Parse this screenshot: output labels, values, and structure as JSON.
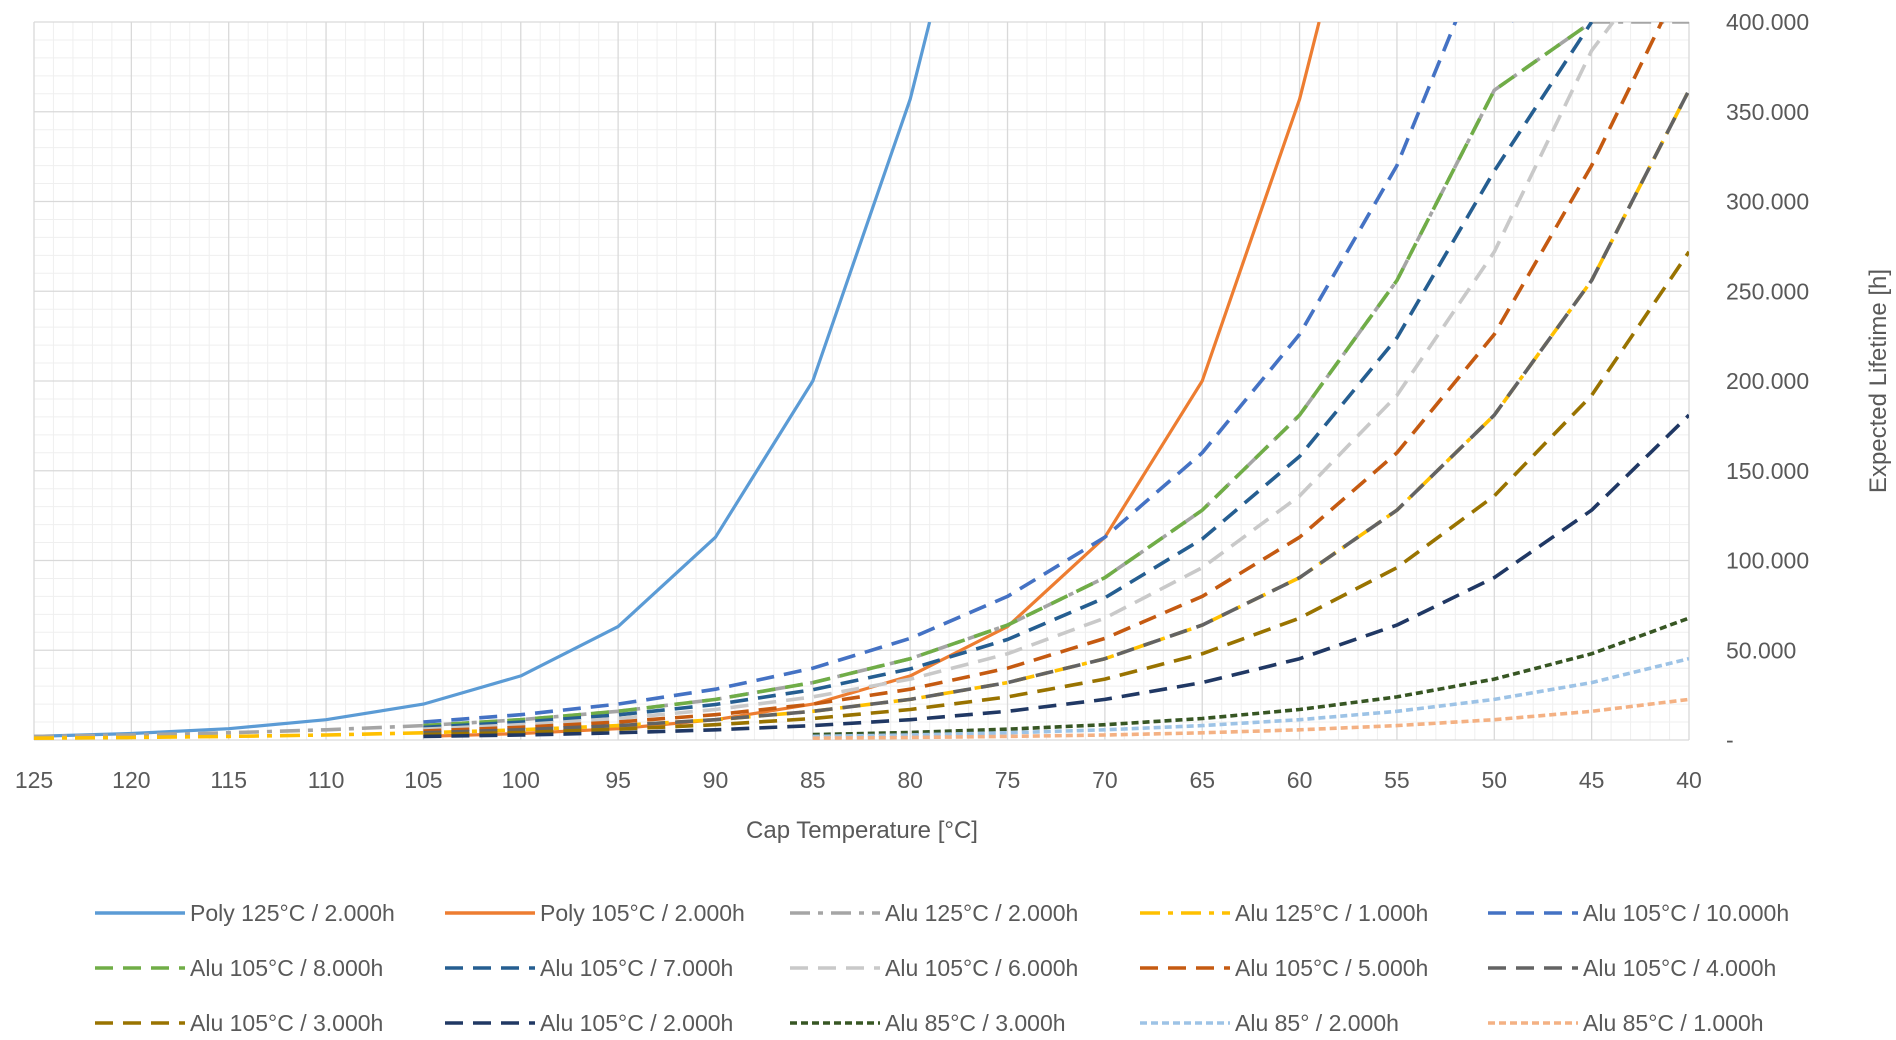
{
  "chart_data": {
    "type": "line",
    "title": "",
    "xlabel": "Cap Temperature  [°C]",
    "ylabel": "Expected  Lifetime [h]",
    "xlim": [
      125,
      40
    ],
    "ylim": [
      0,
      400000
    ],
    "x_reversed": true,
    "y_axis_position": "right",
    "grid": true,
    "legend_position": "bottom",
    "x_ticks": [
      125,
      120,
      115,
      110,
      105,
      100,
      95,
      90,
      85,
      80,
      75,
      70,
      65,
      60,
      55,
      50,
      45,
      40
    ],
    "x_tick_labels": [
      "125",
      "120",
      "115",
      "110",
      "105",
      "100",
      "95",
      "90",
      "85",
      "80",
      "75",
      "70",
      "65",
      "60",
      "55",
      "50",
      "45",
      "40"
    ],
    "y_ticks": [
      0,
      50000,
      100000,
      150000,
      200000,
      250000,
      300000,
      350000,
      400000
    ],
    "y_tick_labels": [
      "-",
      "50.000",
      "100.000",
      "150.000",
      "200.000",
      "250.000",
      "300.000",
      "350.000",
      "400.000"
    ],
    "series": [
      {
        "name": "Poly 125°C / 2.000h",
        "color": "#5B9BD5",
        "dash": "solid",
        "x": [
          125,
          120,
          115,
          110,
          105,
          100,
          95,
          90,
          85,
          80,
          79
        ],
        "y": [
          2000,
          3600,
          6300,
          11300,
          20000,
          35700,
          63200,
          113000,
          200000,
          357000,
          400000
        ]
      },
      {
        "name": "Poly 105°C / 2.000h",
        "color": "#ED7D31",
        "dash": "solid",
        "x": [
          105,
          100,
          95,
          90,
          85,
          80,
          75,
          70,
          65,
          60,
          59
        ],
        "y": [
          2000,
          3600,
          6300,
          11300,
          20000,
          35700,
          63200,
          113000,
          200000,
          357000,
          400000
        ]
      },
      {
        "name": "Alu 125°C / 2.000h",
        "color": "#A5A5A5",
        "dash": "dashdot",
        "x": [
          125,
          120,
          115,
          110,
          105,
          100,
          95,
          90,
          85,
          80,
          75,
          70,
          65,
          60,
          55,
          50,
          45,
          40
        ],
        "y": [
          2000,
          2800,
          4000,
          5700,
          8000,
          11300,
          16000,
          22600,
          32000,
          45300,
          64000,
          90500,
          128000,
          181000,
          256000,
          362000,
          400000,
          400000
        ]
      },
      {
        "name": "Alu 125°C / 1.000h",
        "color": "#FFC000",
        "dash": "dashdot",
        "x": [
          125,
          120,
          115,
          110,
          105,
          100,
          95,
          90,
          85,
          80,
          75,
          70,
          65,
          60,
          55,
          50,
          45,
          40
        ],
        "y": [
          1000,
          1400,
          2000,
          2800,
          4000,
          5700,
          8000,
          11300,
          16000,
          22600,
          32000,
          45300,
          64000,
          90500,
          128000,
          181000,
          256000,
          362000
        ]
      },
      {
        "name": "Alu 105°C / 10.000h",
        "color": "#4472C4",
        "dash": "dash",
        "x": [
          105,
          100,
          95,
          90,
          85,
          80,
          75,
          70,
          65,
          60,
          55,
          50,
          49
        ],
        "y": [
          10000,
          14100,
          20000,
          28300,
          40000,
          56600,
          80000,
          113000,
          160000,
          226000,
          320000,
          453000,
          400000
        ]
      },
      {
        "name": "Alu 105°C / 8.000h",
        "color": "#70AD47",
        "dash": "dash",
        "x": [
          105,
          100,
          95,
          90,
          85,
          80,
          75,
          70,
          65,
          60,
          55,
          50,
          45
        ],
        "y": [
          8000,
          11300,
          16000,
          22600,
          32000,
          45300,
          64000,
          90500,
          128000,
          181000,
          256000,
          362000,
          400000
        ]
      },
      {
        "name": "Alu 105°C / 7.000h",
        "color": "#255E91",
        "dash": "dash",
        "x": [
          105,
          100,
          95,
          90,
          85,
          80,
          75,
          70,
          65,
          60,
          55,
          50,
          45
        ],
        "y": [
          7000,
          9900,
          14000,
          19800,
          28000,
          39600,
          56000,
          79200,
          112000,
          158000,
          224000,
          317000,
          400000
        ]
      },
      {
        "name": "Alu 105°C / 6.000h",
        "color": "#C9C9C9",
        "dash": "dash",
        "x": [
          105,
          100,
          95,
          90,
          85,
          80,
          75,
          70,
          65,
          60,
          55,
          50,
          45,
          43.9
        ],
        "y": [
          6000,
          8500,
          12000,
          17000,
          24000,
          33900,
          48000,
          67900,
          96000,
          136000,
          192000,
          272000,
          384000,
          400000
        ]
      },
      {
        "name": "Alu 105°C / 5.000h",
        "color": "#C55A11",
        "dash": "dash",
        "x": [
          105,
          100,
          95,
          90,
          85,
          80,
          75,
          70,
          65,
          60,
          55,
          50,
          45,
          41.4
        ],
        "y": [
          5000,
          7100,
          10000,
          14100,
          20000,
          28300,
          40000,
          56600,
          80000,
          113000,
          160000,
          226000,
          320000,
          400000
        ]
      },
      {
        "name": "Alu 105°C / 4.000h",
        "color": "#636363",
        "dash": "dash",
        "x": [
          105,
          100,
          95,
          90,
          85,
          80,
          75,
          70,
          65,
          60,
          55,
          50,
          45,
          40
        ],
        "y": [
          4000,
          5700,
          8000,
          11300,
          16000,
          22600,
          32000,
          45300,
          64000,
          90500,
          128000,
          181000,
          256000,
          362000
        ]
      },
      {
        "name": "Alu 105°C / 3.000h",
        "color": "#997300",
        "dash": "dash",
        "x": [
          105,
          100,
          95,
          90,
          85,
          80,
          75,
          70,
          65,
          60,
          55,
          50,
          45,
          40
        ],
        "y": [
          3000,
          4200,
          6000,
          8500,
          12000,
          17000,
          24000,
          33900,
          48000,
          67900,
          96000,
          136000,
          192000,
          272000
        ]
      },
      {
        "name": "Alu 105°C / 2.000h",
        "color": "#203864",
        "dash": "dash",
        "x": [
          105,
          100,
          95,
          90,
          85,
          80,
          75,
          70,
          65,
          60,
          55,
          50,
          45,
          40
        ],
        "y": [
          2000,
          2800,
          4000,
          5700,
          8000,
          11300,
          16000,
          22600,
          32000,
          45300,
          64000,
          90500,
          128000,
          181000
        ]
      },
      {
        "name": "Alu 85°C / 3.000h",
        "color": "#375623",
        "dash": "dot",
        "x": [
          85,
          80,
          75,
          70,
          65,
          60,
          55,
          50,
          45,
          40
        ],
        "y": [
          3000,
          4200,
          6000,
          8500,
          12000,
          17000,
          24000,
          33900,
          48000,
          67900
        ]
      },
      {
        "name": "Alu 85° / 2.000h",
        "color": "#9DC3E6",
        "dash": "dot",
        "x": [
          85,
          80,
          75,
          70,
          65,
          60,
          55,
          50,
          45,
          40
        ],
        "y": [
          2000,
          2800,
          4000,
          5700,
          8000,
          11300,
          16000,
          22600,
          32000,
          45300
        ]
      },
      {
        "name": "Alu 85°C / 1.000h",
        "color": "#F4B183",
        "dash": "dot",
        "x": [
          85,
          80,
          75,
          70,
          65,
          60,
          55,
          50,
          45,
          40
        ],
        "y": [
          1000,
          1400,
          2000,
          2800,
          4000,
          5700,
          8000,
          11300,
          16000,
          22600
        ]
      }
    ]
  }
}
